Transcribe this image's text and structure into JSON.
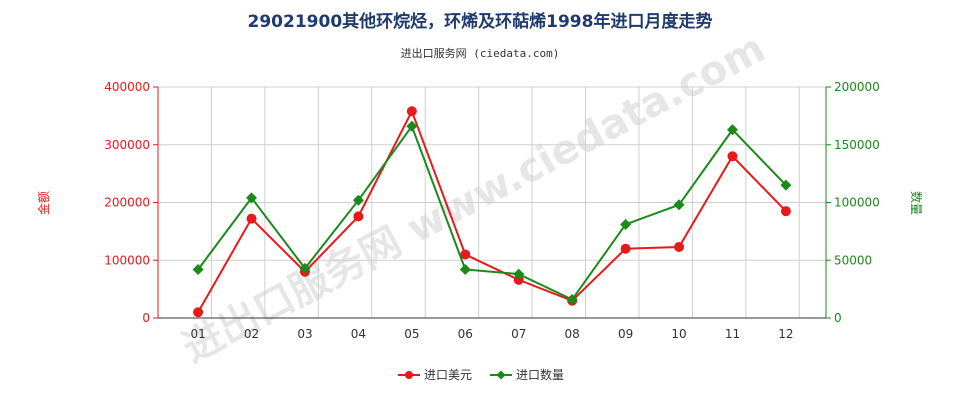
{
  "chart_data": {
    "type": "line",
    "title": "29021900其他环烷烃，环烯及环萜烯1998年进口月度走势",
    "subtitle": "进出口服务网 (ciedata.com)",
    "watermark": "进出口服务网 www.ciedata.com",
    "categories": [
      "01",
      "02",
      "03",
      "04",
      "05",
      "06",
      "07",
      "08",
      "09",
      "10",
      "11",
      "12"
    ],
    "y_left": {
      "label": "金额",
      "ylim": [
        0,
        400000
      ],
      "ticks": [
        "0",
        "100000",
        "200000",
        "300000",
        "400000"
      ],
      "color": "#e8191a"
    },
    "y_right": {
      "label": "数量",
      "ylim": [
        0,
        200000
      ],
      "ticks": [
        "0",
        "50000",
        "100000",
        "150000",
        "200000"
      ],
      "color": "#1a8a1a"
    },
    "grid": true,
    "legend_position": "bottom",
    "series": [
      {
        "name": "进口美元",
        "axis": "left",
        "color": "#e8191a",
        "marker": "circle",
        "values": [
          10000,
          172000,
          80000,
          176000,
          358000,
          110000,
          66000,
          30000,
          120000,
          123000,
          280000,
          185000
        ]
      },
      {
        "name": "进口数量",
        "axis": "right",
        "color": "#1a8a1a",
        "marker": "diamond",
        "values": [
          42000,
          104000,
          43000,
          102000,
          166000,
          42000,
          38000,
          16000,
          81000,
          98000,
          163000,
          115000
        ]
      }
    ]
  }
}
